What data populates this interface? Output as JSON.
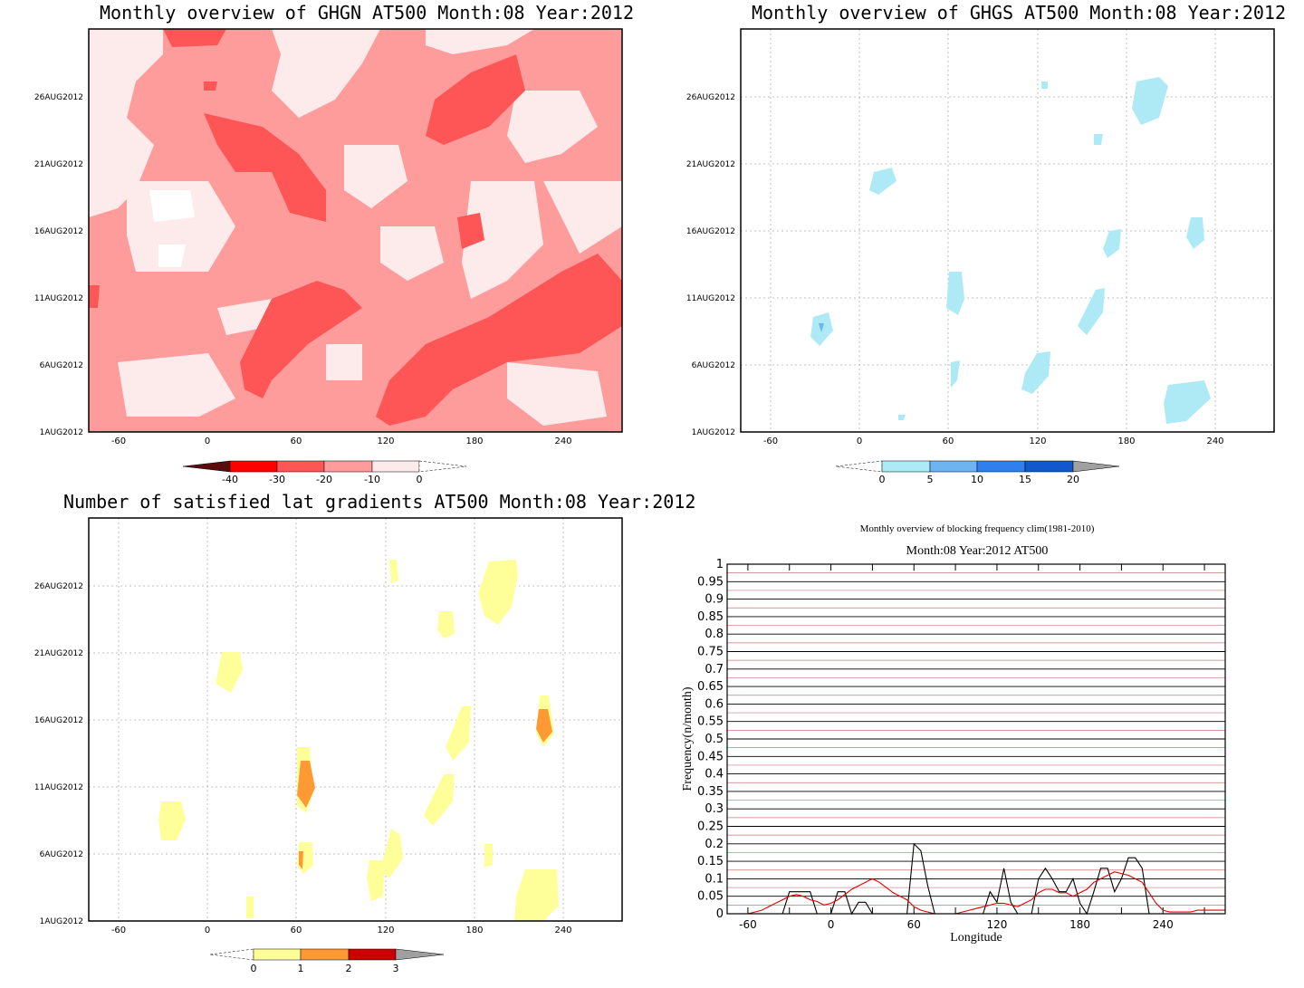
{
  "panels": {
    "ghgn": {
      "title": "Monthly overview of GHGN AT500 Month:08 Year:2012",
      "y_ticks": [
        "1AUG2012",
        "6AUG2012",
        "11AUG2012",
        "16AUG2012",
        "21AUG2012",
        "26AUG2012"
      ],
      "x_ticks": [
        "-60",
        "0",
        "60",
        "120",
        "180",
        "240"
      ],
      "colorbar": {
        "labels": [
          "-40",
          "-30",
          "-20",
          "-10",
          "0"
        ],
        "colors": [
          "#5a0d0d",
          "#ff0000",
          "#fe5656",
          "#fe9c9c",
          "#fdebeb",
          "#ffffff"
        ]
      }
    },
    "ghgs": {
      "title": "Monthly overview of GHGS AT500 Month:08 Year:2012",
      "y_ticks": [
        "1AUG2012",
        "6AUG2012",
        "11AUG2012",
        "16AUG2012",
        "21AUG2012",
        "26AUG2012"
      ],
      "x_ticks": [
        "-60",
        "0",
        "60",
        "120",
        "180",
        "240"
      ],
      "colorbar": {
        "labels": [
          "0",
          "5",
          "10",
          "15",
          "20"
        ],
        "colors": [
          "#ffffff",
          "#aeeaf5",
          "#6eb4f0",
          "#2f80ec",
          "#1058cc",
          "#a0a0a0"
        ]
      }
    },
    "lat": {
      "title": "Number of satisfied lat gradients AT500 Month:08 Year:2012",
      "y_ticks": [
        "1AUG2012",
        "6AUG2012",
        "11AUG2012",
        "16AUG2012",
        "21AUG2012",
        "26AUG2012"
      ],
      "x_ticks": [
        "-60",
        "0",
        "60",
        "120",
        "180",
        "240"
      ],
      "colorbar": {
        "labels": [
          "0",
          "1",
          "2",
          "3"
        ],
        "colors": [
          "#ffffff",
          "#ffff99",
          "#ff9933",
          "#cc0000",
          "#a0a0a0"
        ]
      }
    }
  },
  "chart_data": {
    "type": "line",
    "title": "Monthly overview of blocking frequency clim(1981-2010)",
    "subtitle": "Month:08 Year:2012  AT500",
    "xlabel": "Longitude",
    "ylabel": "Frequency(n/month)",
    "xlim": [
      -75,
      285
    ],
    "ylim": [
      0,
      1
    ],
    "x_ticks": [
      "-60",
      "0",
      "60",
      "120",
      "180",
      "240"
    ],
    "y_ticks": [
      "0",
      "0.05",
      "0.1",
      "0.15",
      "0.2",
      "0.25",
      "0.3",
      "0.35",
      "0.4",
      "0.45",
      "0.5",
      "0.55",
      "0.6",
      "0.65",
      "0.7",
      "0.75",
      "0.8",
      "0.85",
      "0.9",
      "0.95",
      "1"
    ],
    "series": [
      {
        "color": "#000000",
        "x": [
          -75,
          -35,
          -30,
          -20,
          -15,
          -10,
          0,
          5,
          10,
          15,
          20,
          25,
          30,
          55,
          60,
          65,
          70,
          75,
          80,
          85,
          90,
          95,
          100,
          105,
          110,
          115,
          120,
          125,
          130,
          135,
          140,
          145,
          150,
          155,
          160,
          165,
          170,
          175,
          180,
          185,
          190,
          195,
          200,
          205,
          210,
          215,
          220,
          225,
          230,
          235,
          240,
          245,
          250,
          255,
          260,
          265,
          270,
          275,
          280,
          285
        ],
        "y": [
          0,
          0,
          0.063,
          0.063,
          0.063,
          0,
          0,
          0.063,
          0.063,
          0,
          0.033,
          0.033,
          0,
          0,
          0.2,
          0.18,
          0.08,
          0,
          0,
          0,
          0,
          0,
          0,
          0,
          0,
          0.063,
          0.033,
          0.13,
          0.033,
          0,
          0,
          0,
          0.1,
          0.13,
          0.1,
          0.063,
          0.063,
          0.1,
          0.03,
          0,
          0.063,
          0.13,
          0.13,
          0.063,
          0.1,
          0.16,
          0.16,
          0.13,
          0,
          0,
          0,
          0,
          0,
          0,
          0,
          0,
          0,
          0,
          0,
          0
        ]
      },
      {
        "color": "#e00000",
        "x": [
          -75,
          -70,
          -65,
          -60,
          -55,
          -50,
          -45,
          -40,
          -35,
          -30,
          -25,
          -20,
          -15,
          -10,
          -5,
          0,
          5,
          10,
          15,
          20,
          25,
          30,
          35,
          40,
          45,
          50,
          55,
          60,
          65,
          70,
          75,
          80,
          85,
          90,
          95,
          100,
          105,
          110,
          115,
          120,
          125,
          130,
          135,
          140,
          145,
          150,
          155,
          160,
          165,
          170,
          175,
          180,
          185,
          190,
          195,
          200,
          205,
          210,
          215,
          220,
          225,
          230,
          235,
          240,
          245,
          250,
          255,
          260,
          265,
          270,
          275,
          280,
          285
        ],
        "y": [
          0,
          0,
          0,
          0,
          0.005,
          0.01,
          0.02,
          0.03,
          0.04,
          0.05,
          0.055,
          0.05,
          0.04,
          0.035,
          0.025,
          0.03,
          0.04,
          0.055,
          0.07,
          0.08,
          0.09,
          0.1,
          0.09,
          0.075,
          0.06,
          0.05,
          0.04,
          0.02,
          0.01,
          0.005,
          0,
          0,
          0,
          0,
          0.005,
          0.01,
          0.015,
          0.02,
          0.025,
          0.03,
          0.03,
          0.025,
          0.02,
          0.03,
          0.04,
          0.06,
          0.07,
          0.07,
          0.06,
          0.06,
          0.05,
          0.06,
          0.07,
          0.09,
          0.1,
          0.11,
          0.12,
          0.115,
          0.11,
          0.1,
          0.09,
          0.06,
          0.03,
          0.01,
          0.005,
          0.005,
          0.005,
          0.005,
          0.01,
          0.01,
          0.01,
          0.01,
          0.01
        ]
      }
    ]
  }
}
